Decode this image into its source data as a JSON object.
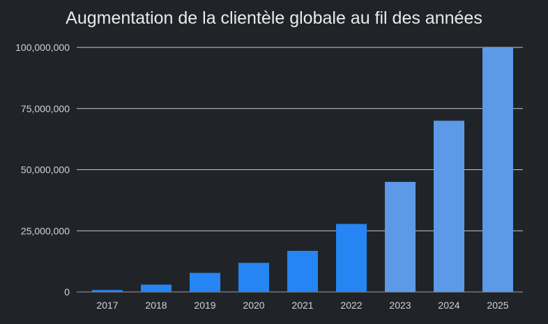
{
  "chart_data": {
    "type": "bar",
    "title": "Augmentation de la clientèle globale au fil des années",
    "xlabel": "",
    "ylabel": "",
    "categories": [
      "2017",
      "2018",
      "2019",
      "2020",
      "2021",
      "2022",
      "2023",
      "2024",
      "2025"
    ],
    "values": [
      800000,
      3000000,
      7800000,
      11900000,
      16800000,
      27800000,
      45000000,
      70000000,
      100000000
    ],
    "ylim": [
      0,
      100000000
    ],
    "yticks": [
      0,
      25000000,
      50000000,
      75000000,
      100000000
    ],
    "ytick_labels": [
      "0",
      "25,000,000",
      "50,000,000",
      "75,000,000",
      "100,000,000"
    ],
    "grid": true,
    "colors": {
      "background": "#202428",
      "bar_actual": "#2585f2",
      "bar_projected": "#5c9ae8",
      "grid": "#e6e6e6",
      "text": "#d2d2d2"
    },
    "bar_colors": [
      "#2585f2",
      "#2585f2",
      "#2585f2",
      "#2585f2",
      "#2585f2",
      "#2585f2",
      "#5c9ae8",
      "#5c9ae8",
      "#5c9ae8"
    ]
  }
}
